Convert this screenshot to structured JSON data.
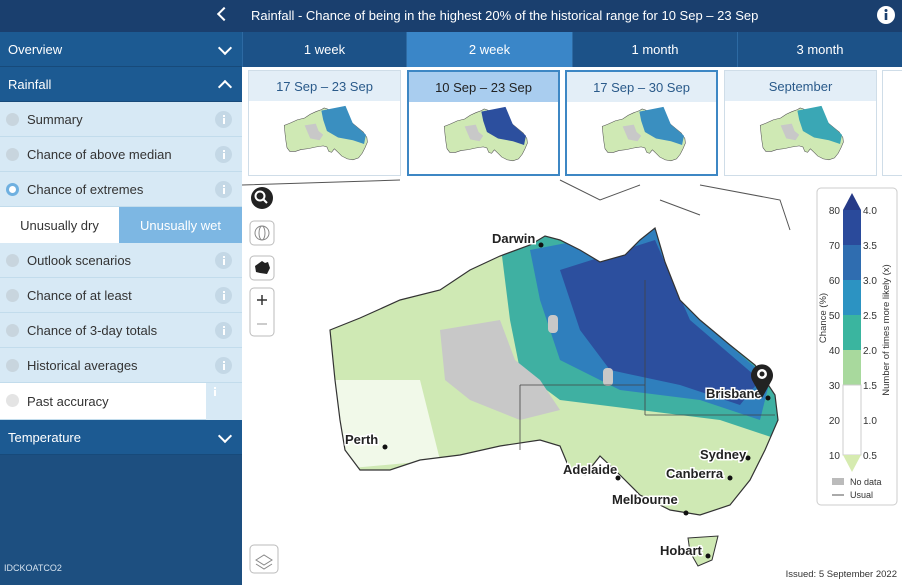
{
  "header": {
    "title": "Rainfall - Chance of being in the highest 20% of the historical range for 10 Sep – 23 Sep"
  },
  "tabs": [
    "1 week",
    "2 week",
    "1 month",
    "3 month"
  ],
  "thumbnails": [
    "17 Sep – 23 Sep",
    "10 Sep – 23 Sep",
    "17 Sep – 30 Sep",
    "September"
  ],
  "sidebar": {
    "overview": "Overview",
    "rainfall": "Rainfall",
    "items": [
      "Summary",
      "Chance of above median",
      "Chance of extremes",
      "Outlook scenarios",
      "Chance of at least",
      "Chance of 3-day totals",
      "Historical averages",
      "Past accuracy"
    ],
    "toggle": [
      "Unusually dry",
      "Unusually wet"
    ],
    "temperature": "Temperature",
    "product_code": "IDCKOATCO2"
  },
  "map": {
    "cities": [
      "Darwin",
      "Brisbane",
      "Perth",
      "Sydney",
      "Adelaide",
      "Canberra",
      "Melbourne",
      "Hobart"
    ]
  },
  "legend": {
    "chance_label": "Chance (%)",
    "chance_ticks": [
      "80",
      "70",
      "60",
      "50",
      "40",
      "30",
      "20",
      "10"
    ],
    "times_label": "Number of times more likely (x)",
    "times_ticks": [
      "4.0",
      "3.5",
      "3.0",
      "2.5",
      "2.0",
      "1.5",
      "1.0",
      "0.5"
    ],
    "no_data": "No data",
    "usual": "Usual"
  },
  "issued": "Issued: 5 September 2022"
}
